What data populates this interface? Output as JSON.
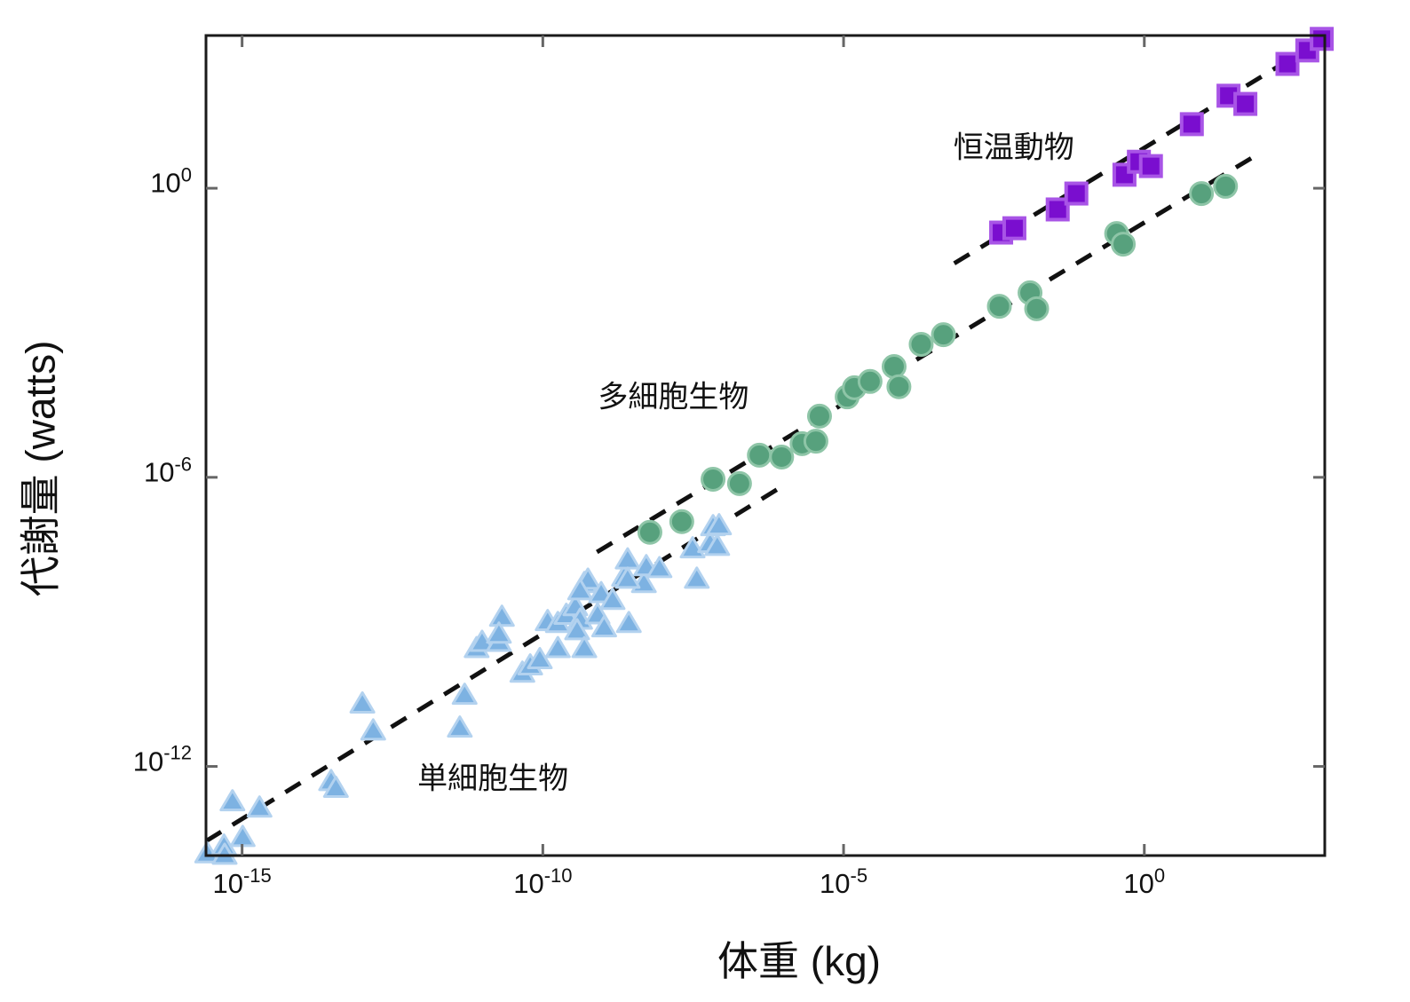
{
  "figure": {
    "background": "#ffffff",
    "frame_color": "#1a1a1a",
    "tick_color": "#666666"
  },
  "chart_data": {
    "type": "scatter",
    "title": "",
    "xlabel": "体重 (kg)",
    "ylabel": "代謝量 (watts)",
    "grid": false,
    "legend": "none (in-plot text annotations)",
    "x_axis": {
      "scale": "log10",
      "range_exponents": [
        -15.6,
        3.0
      ],
      "tick_exponents": [
        -15,
        -10,
        -5,
        0
      ],
      "tick_base": "10"
    },
    "y_axis": {
      "scale": "log10",
      "range_exponents": [
        -13.85,
        3.17
      ],
      "tick_exponents": [
        0,
        -6,
        -12
      ],
      "tick_base": "10"
    },
    "line_style": {
      "color": "#111111",
      "width": 5,
      "dash": [
        20,
        15
      ]
    },
    "series": [
      {
        "name": "単細胞生物",
        "marker": "triangle",
        "fill": "#7db2e2",
        "edge": "#b3d2ef",
        "points": [
          [
            -15.58,
            -13.8
          ],
          [
            -15.3,
            -13.64
          ],
          [
            -15.29,
            -13.83
          ],
          [
            -15.16,
            -12.72
          ],
          [
            -14.99,
            -13.46
          ],
          [
            -14.71,
            -12.85
          ],
          [
            -13.52,
            -12.3
          ],
          [
            -13.44,
            -12.44
          ],
          [
            -13.0,
            -10.69
          ],
          [
            -12.82,
            -11.25
          ],
          [
            -11.38,
            -11.19
          ],
          [
            -11.3,
            -10.51
          ],
          [
            -11.1,
            -9.54
          ],
          [
            -11.01,
            -9.41
          ],
          [
            -10.73,
            -9.41
          ],
          [
            -10.68,
            -8.89
          ],
          [
            -10.73,
            -9.24
          ],
          [
            -10.34,
            -10.05
          ],
          [
            -10.21,
            -9.9
          ],
          [
            -10.05,
            -9.77
          ],
          [
            -9.75,
            -9.54
          ],
          [
            -9.92,
            -8.98
          ],
          [
            -9.75,
            -9.02
          ],
          [
            -9.61,
            -8.85
          ],
          [
            -9.46,
            -8.67
          ],
          [
            -9.38,
            -8.95
          ],
          [
            -9.31,
            -8.19
          ],
          [
            -9.25,
            -8.12
          ],
          [
            -9.38,
            -8.34
          ],
          [
            -9.43,
            -9.17
          ],
          [
            -9.09,
            -8.84
          ],
          [
            -8.98,
            -9.11
          ],
          [
            -9.31,
            -9.54
          ],
          [
            -9.03,
            -8.4
          ],
          [
            -8.65,
            -8.06
          ],
          [
            -8.57,
            -9.02
          ],
          [
            -8.59,
            -7.7
          ],
          [
            -8.84,
            -8.54
          ],
          [
            -8.32,
            -8.19
          ],
          [
            -8.28,
            -7.84
          ],
          [
            -8.06,
            -7.88
          ],
          [
            -8.59,
            -8.1
          ],
          [
            -7.44,
            -8.1
          ],
          [
            -7.51,
            -7.47
          ],
          [
            -7.22,
            -7.36
          ],
          [
            -7.1,
            -7.42
          ],
          [
            -7.17,
            -7.01
          ],
          [
            -7.07,
            -6.99
          ]
        ]
      },
      {
        "name": "多細胞生物",
        "marker": "circle",
        "fill": "#57a17d",
        "edge": "#8ec5a7",
        "points": [
          [
            -8.22,
            -7.14
          ],
          [
            -7.69,
            -6.92
          ],
          [
            -7.17,
            -6.04
          ],
          [
            -6.73,
            -6.13
          ],
          [
            -6.4,
            -5.54
          ],
          [
            -6.03,
            -5.58
          ],
          [
            -5.69,
            -5.3
          ],
          [
            -5.46,
            -5.25
          ],
          [
            -5.4,
            -4.73
          ],
          [
            -4.94,
            -4.33
          ],
          [
            -4.82,
            -4.14
          ],
          [
            -4.56,
            -4.01
          ],
          [
            -4.16,
            -3.7
          ],
          [
            -4.08,
            -4.12
          ],
          [
            -3.71,
            -3.24
          ],
          [
            -3.34,
            -3.04
          ],
          [
            -2.41,
            -2.45
          ],
          [
            -1.9,
            -2.17
          ],
          [
            -1.79,
            -2.5
          ],
          [
            -0.46,
            -0.94
          ],
          [
            -0.35,
            -1.16
          ],
          [
            0.95,
            -0.11
          ],
          [
            1.35,
            0.04
          ]
        ]
      },
      {
        "name": "恒温動物",
        "marker": "square",
        "fill": "#7a0ecf",
        "edge": "#a854e6",
        "points": [
          [
            -2.38,
            -0.92
          ],
          [
            -2.16,
            -0.83
          ],
          [
            -1.44,
            -0.44
          ],
          [
            -1.13,
            -0.11
          ],
          [
            -0.33,
            0.28
          ],
          [
            -0.09,
            0.55
          ],
          [
            0.11,
            0.46
          ],
          [
            0.79,
            1.33
          ],
          [
            1.4,
            1.92
          ],
          [
            1.68,
            1.75
          ],
          [
            2.38,
            2.58
          ],
          [
            2.71,
            2.86
          ],
          [
            2.95,
            3.1
          ]
        ]
      }
    ],
    "fit_lines": [
      {
        "series": "単細胞生物",
        "from": [
          -15.6,
          -13.55
        ],
        "to": [
          -6.09,
          -6.24
        ],
        "slope_approx": 0.77
      },
      {
        "series": "多細胞生物",
        "from": [
          -9.1,
          -7.55
        ],
        "to": [
          1.88,
          0.7
        ],
        "slope_approx": 0.75
      },
      {
        "series": "恒温動物",
        "from": [
          -3.16,
          -1.56
        ],
        "to": [
          3.02,
          3.13
        ],
        "slope_approx": 0.76
      }
    ],
    "annotations": [
      {
        "text": "恒温動物",
        "x": -2.17,
        "y": 0.83
      },
      {
        "text": "多細胞生物",
        "x": -7.83,
        "y": -4.34
      },
      {
        "text": "単細胞生物",
        "x": -10.83,
        "y": -12.26
      }
    ]
  }
}
